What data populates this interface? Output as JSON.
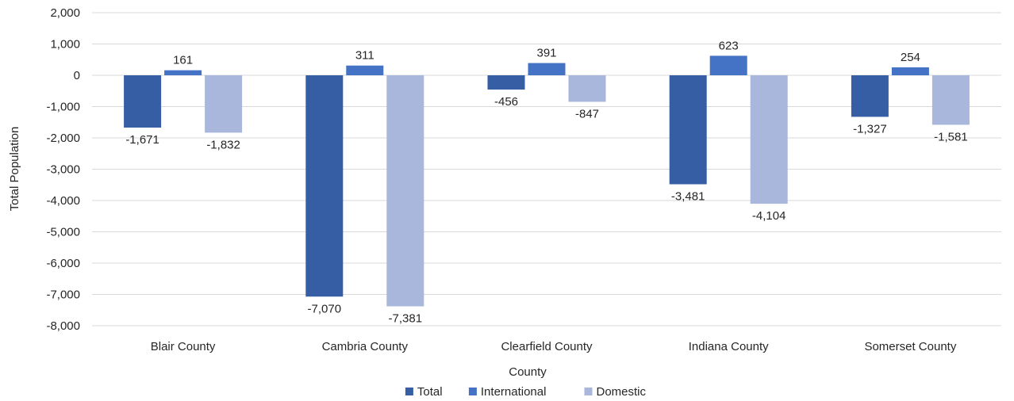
{
  "chart_data": {
    "type": "bar",
    "title": "",
    "xlabel": "County",
    "ylabel": "Total Population",
    "categories": [
      "Blair County",
      "Cambria County",
      "Clearfield County",
      "Indiana County",
      "Somerset County"
    ],
    "series": [
      {
        "name": "Total",
        "color": "#355ea5",
        "values": [
          -1671,
          -7070,
          -456,
          -3481,
          -1327
        ]
      },
      {
        "name": "International",
        "color": "#4472c4",
        "values": [
          161,
          311,
          391,
          623,
          254
        ]
      },
      {
        "name": "Domestic",
        "color": "#a9b7dc",
        "values": [
          -1832,
          -7381,
          -847,
          -4104,
          -1581
        ]
      }
    ],
    "ylim": [
      -8000,
      2000
    ],
    "ytick_step": 1000,
    "grid": true,
    "legend": "bottom"
  }
}
